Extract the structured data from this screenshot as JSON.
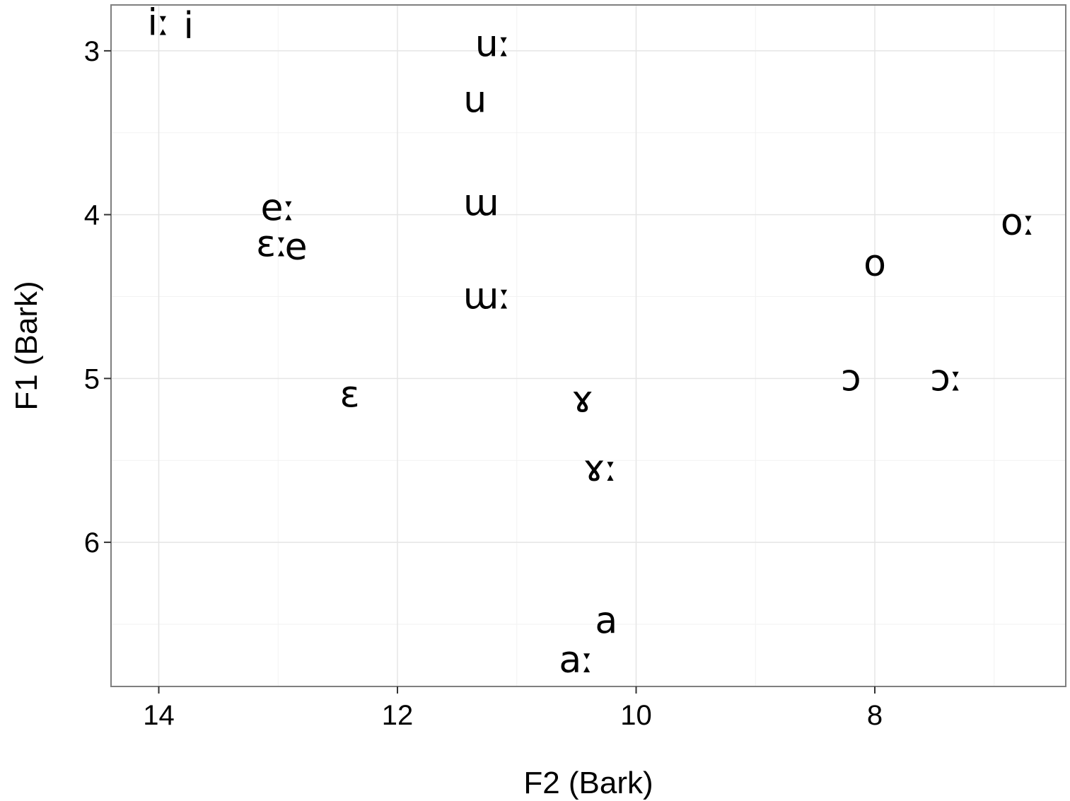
{
  "chart_data": {
    "type": "scatter",
    "xlabel": "F2 (Bark)",
    "ylabel": "F1 (Bark)",
    "x_reversed": true,
    "y_reversed": true,
    "xlim": [
      14.4,
      6.4
    ],
    "ylim": [
      2.72,
      6.88
    ],
    "x_ticks": [
      14,
      12,
      10,
      8
    ],
    "y_ticks": [
      3,
      4,
      5,
      6
    ],
    "grid": true,
    "points": [
      {
        "label": "iː",
        "x": 14.0,
        "y": 2.83
      },
      {
        "label": "i",
        "x": 13.75,
        "y": 2.85
      },
      {
        "label": "uː",
        "x": 11.2,
        "y": 2.96
      },
      {
        "label": "u",
        "x": 11.35,
        "y": 3.3
      },
      {
        "label": "eː",
        "x": 13.0,
        "y": 3.96
      },
      {
        "label": "ɯ",
        "x": 11.3,
        "y": 3.93
      },
      {
        "label": "oː",
        "x": 6.8,
        "y": 4.05
      },
      {
        "label": "ɛː",
        "x": 13.05,
        "y": 4.18
      },
      {
        "label": "e",
        "x": 12.85,
        "y": 4.2
      },
      {
        "label": "o",
        "x": 8.0,
        "y": 4.3
      },
      {
        "label": "ɯː",
        "x": 11.25,
        "y": 4.5
      },
      {
        "label": "ɔ",
        "x": 8.2,
        "y": 5.0
      },
      {
        "label": "ɔː",
        "x": 7.4,
        "y": 5.0
      },
      {
        "label": "ɛ",
        "x": 12.4,
        "y": 5.1
      },
      {
        "label": "ɤ",
        "x": 10.45,
        "y": 5.13
      },
      {
        "label": "ɤː",
        "x": 10.3,
        "y": 5.55
      },
      {
        "label": "a",
        "x": 10.25,
        "y": 6.48
      },
      {
        "label": "aː",
        "x": 10.5,
        "y": 6.72
      }
    ]
  }
}
